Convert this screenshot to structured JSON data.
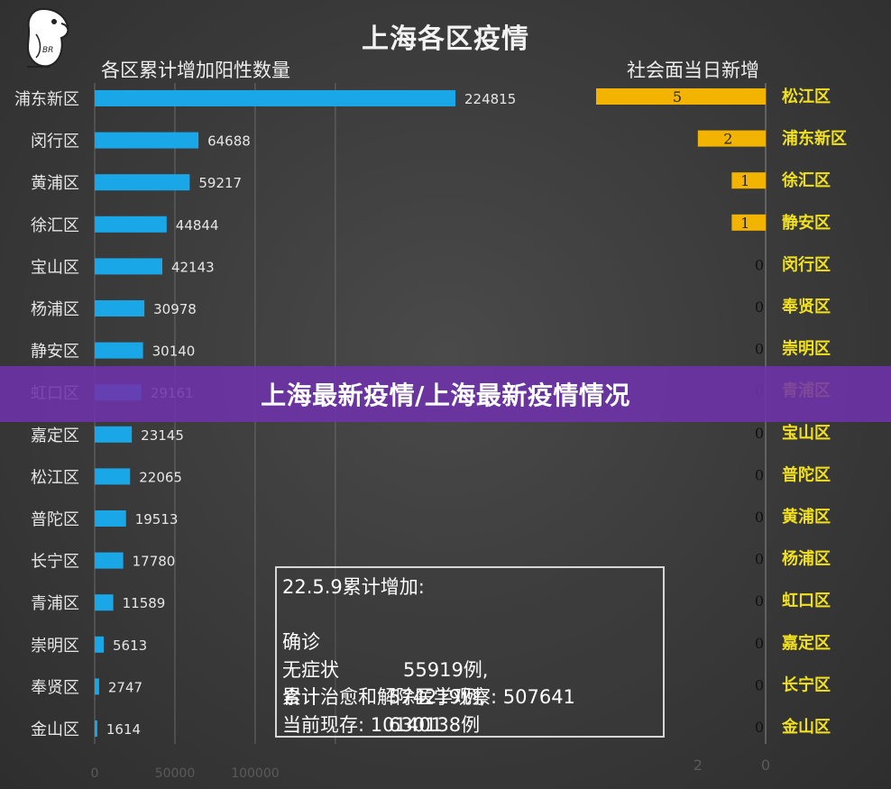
{
  "title": "上海各区疫情",
  "left_chart_title": "各区累计增加阳性数量",
  "right_chart_title": "社会面当日新增",
  "banner_text": "上海最新疫情/上海最新疫情情况",
  "logo_text": "BR",
  "colors": {
    "left_bar": "#1aa7e8",
    "right_bar": "#f2b400",
    "right_label": "#f0e020",
    "text": "#e6e6e6",
    "banner": "#6e32aa"
  },
  "info_box": {
    "heading": "22.5.9累计增加:",
    "rows": [
      {
        "label": "确诊",
        "value": "55919例,"
      },
      {
        "label": "无症状",
        "value": "574219例,"
      },
      {
        "label": "合计",
        "value": "630138例"
      }
    ],
    "cured": "累计治愈和解除医学观察: 507641",
    "current": "当前现存: 101401"
  },
  "chart_data": [
    {
      "type": "bar",
      "orientation": "horizontal",
      "title": "各区累计增加阳性数量",
      "categories": [
        "浦东新区",
        "闵行区",
        "黄浦区",
        "徐汇区",
        "宝山区",
        "杨浦区",
        "静安区",
        "虹口区",
        "嘉定区",
        "松江区",
        "普陀区",
        "长宁区",
        "青浦区",
        "崇明区",
        "奉贤区",
        "金山区"
      ],
      "values": [
        224815,
        64688,
        59217,
        44844,
        42143,
        30978,
        30140,
        29161,
        23145,
        22065,
        19513,
        17780,
        11589,
        5613,
        2747,
        1614
      ],
      "value_labels": [
        "224815",
        "64688",
        "59217",
        "44844",
        "42143",
        "30978",
        "30140",
        "29161",
        "23145",
        "22065",
        "19513",
        "17780",
        "11589",
        "5613",
        "2747",
        "1614"
      ],
      "xlim": [
        0,
        250000
      ],
      "x_ticks": [
        "0",
        "50000",
        "100000"
      ],
      "grid": true
    },
    {
      "type": "bar",
      "orientation": "horizontal",
      "direction": "right-to-left",
      "title": "社会面当日新增",
      "categories": [
        "松江区",
        "浦东新区",
        "徐汇区",
        "静安区",
        "闵行区",
        "奉贤区",
        "崇明区",
        "青浦区",
        "宝山区",
        "普陀区",
        "黄浦区",
        "杨浦区",
        "虹口区",
        "嘉定区",
        "长宁区",
        "金山区"
      ],
      "values": [
        5,
        2,
        1,
        1,
        0,
        0,
        0,
        0,
        0,
        0,
        0,
        0,
        0,
        0,
        0,
        0
      ],
      "value_labels": [
        "5",
        "2",
        "1",
        "1",
        "0",
        "0",
        "0",
        "0",
        "0",
        "0",
        "0",
        "0",
        "0",
        "0",
        "0",
        "0"
      ],
      "xlim": [
        0,
        5
      ],
      "x_ticks": [
        "2",
        "0"
      ]
    }
  ]
}
